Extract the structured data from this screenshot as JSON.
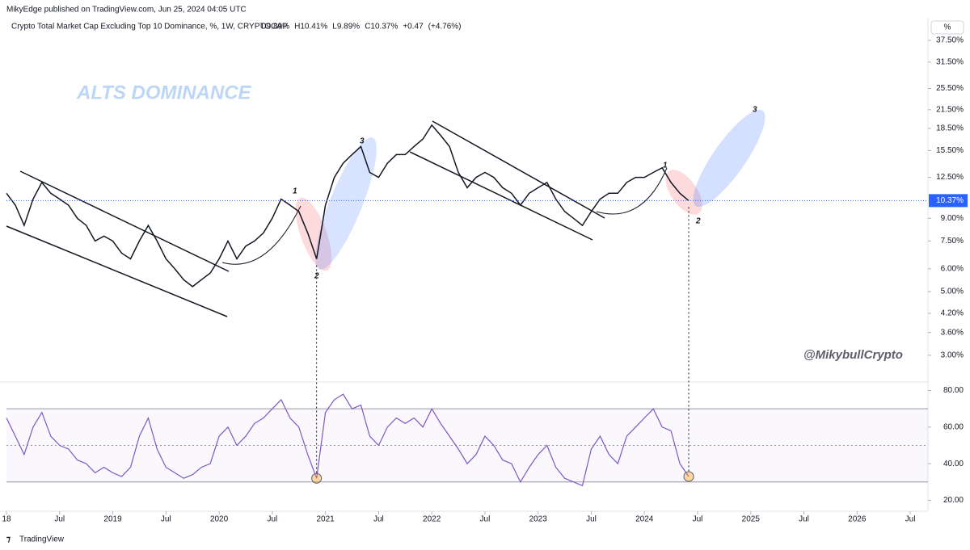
{
  "header": {
    "publisher": "MikyEdge published on TradingView.com, Jun 25, 2024 04:05 UTC",
    "footer": "TradingView"
  },
  "chart_data": [
    {
      "type": "line",
      "title": "Crypto Total Market Cap Excluding Top 10 Dominance, %, 1W, CRYPTOCAP",
      "legend_values": [
        {
          "value": 9.89,
          "label": "O9.89%"
        },
        {
          "value": 10.41,
          "label": "H10.41%"
        },
        {
          "value": 9.89,
          "label": "L9.89%"
        },
        {
          "value": 10.37,
          "label": "C10.37%"
        },
        {
          "value": 0.47,
          "label": "+0.47"
        },
        {
          "value": 4.76,
          "label": "(+4.76%)"
        }
      ],
      "last_price": {
        "value": 10.37,
        "label": "10.37%"
      },
      "unit": "%",
      "log_scale": true,
      "color": "#131722",
      "x": [
        "2018-01",
        "2018-02",
        "2018-03",
        "2018-04",
        "2018-05",
        "2018-06",
        "2018-07",
        "2018-08",
        "2018-09",
        "2018-10",
        "2018-11",
        "2018-12",
        "2019-01",
        "2019-02",
        "2019-03",
        "2019-04",
        "2019-05",
        "2019-06",
        "2019-07",
        "2019-08",
        "2019-09",
        "2019-10",
        "2019-11",
        "2019-12",
        "2020-01",
        "2020-02",
        "2020-03",
        "2020-04",
        "2020-05",
        "2020-06",
        "2020-07",
        "2020-08",
        "2020-09",
        "2020-10",
        "2020-11",
        "2020-12",
        "2021-01",
        "2021-02",
        "2021-03",
        "2021-04",
        "2021-05",
        "2021-06",
        "2021-07",
        "2021-08",
        "2021-09",
        "2021-10",
        "2021-11",
        "2021-12",
        "2022-01",
        "2022-02",
        "2022-03",
        "2022-04",
        "2022-05",
        "2022-06",
        "2022-07",
        "2022-08",
        "2022-09",
        "2022-10",
        "2022-11",
        "2022-12",
        "2023-01",
        "2023-02",
        "2023-03",
        "2023-04",
        "2023-05",
        "2023-06",
        "2023-07",
        "2023-08",
        "2023-09",
        "2023-10",
        "2023-11",
        "2023-12",
        "2024-01",
        "2024-02",
        "2024-03",
        "2024-04",
        "2024-05",
        "2024-06"
      ],
      "values": [
        11,
        10,
        8.5,
        10.5,
        12,
        11,
        10.5,
        10,
        9,
        8.5,
        7.5,
        7.8,
        7.5,
        6.8,
        6.5,
        7.5,
        8.5,
        7.5,
        6.5,
        6,
        5.5,
        5.2,
        5.5,
        5.8,
        6.5,
        7.5,
        6.5,
        7.2,
        7.5,
        8,
        9,
        10.5,
        10,
        9.5,
        8,
        6.5,
        10,
        12.5,
        14,
        15,
        16,
        13,
        12.5,
        14,
        15,
        15,
        16,
        17,
        19,
        17.5,
        16,
        13,
        11.5,
        12.5,
        13,
        12.5,
        11.5,
        11,
        10,
        11,
        11.5,
        12,
        10.5,
        9.5,
        9,
        8.5,
        9.5,
        10.5,
        11,
        11,
        12,
        12.5,
        12.5,
        13,
        13.5,
        12,
        11,
        10.37
      ],
      "xlim": [
        "2018-01",
        "2026-09"
      ],
      "ylim": [
        2.5,
        40
      ],
      "yticks": [
        {
          "value": 37.5,
          "label": "37.50%"
        },
        {
          "value": 31.5,
          "label": "31.50%"
        },
        {
          "value": 25.5,
          "label": "25.50%"
        },
        {
          "value": 21.5,
          "label": "21.50%"
        },
        {
          "value": 18.5,
          "label": "18.50%"
        },
        {
          "value": 15.5,
          "label": "15.50%"
        },
        {
          "value": 12.5,
          "label": "12.50%"
        },
        {
          "value": 9,
          "label": "9.00%"
        },
        {
          "value": 7.5,
          "label": "7.50%"
        },
        {
          "value": 6,
          "label": "6.00%"
        },
        {
          "value": 5,
          "label": "5.00%"
        },
        {
          "value": 4.2,
          "label": "4.20%"
        },
        {
          "value": 3.6,
          "label": "3.60%"
        },
        {
          "value": 3,
          "label": "3.00%"
        }
      ],
      "annotations": [
        "ALTS DOMINANCE",
        "@MikybullCrypto",
        "1",
        "2",
        "3",
        "1",
        "2",
        "3"
      ]
    },
    {
      "type": "line",
      "color": "#7e57c2",
      "x": [
        "2018-01",
        "2018-02",
        "2018-03",
        "2018-04",
        "2018-05",
        "2018-06",
        "2018-07",
        "2018-08",
        "2018-09",
        "2018-10",
        "2018-11",
        "2018-12",
        "2019-01",
        "2019-02",
        "2019-03",
        "2019-04",
        "2019-05",
        "2019-06",
        "2019-07",
        "2019-08",
        "2019-09",
        "2019-10",
        "2019-11",
        "2019-12",
        "2020-01",
        "2020-02",
        "2020-03",
        "2020-04",
        "2020-05",
        "2020-06",
        "2020-07",
        "2020-08",
        "2020-09",
        "2020-10",
        "2020-11",
        "2020-12",
        "2021-01",
        "2021-02",
        "2021-03",
        "2021-04",
        "2021-05",
        "2021-06",
        "2021-07",
        "2021-08",
        "2021-09",
        "2021-10",
        "2021-11",
        "2021-12",
        "2022-01",
        "2022-02",
        "2022-03",
        "2022-04",
        "2022-05",
        "2022-06",
        "2022-07",
        "2022-08",
        "2022-09",
        "2022-10",
        "2022-11",
        "2022-12",
        "2023-01",
        "2023-02",
        "2023-03",
        "2023-04",
        "2023-05",
        "2023-06",
        "2023-07",
        "2023-08",
        "2023-09",
        "2023-10",
        "2023-11",
        "2023-12",
        "2024-01",
        "2024-02",
        "2024-03",
        "2024-04",
        "2024-05",
        "2024-06"
      ],
      "values": [
        65,
        55,
        45,
        60,
        68,
        55,
        50,
        48,
        42,
        40,
        35,
        38,
        35,
        33,
        38,
        55,
        65,
        48,
        38,
        35,
        32,
        34,
        38,
        40,
        55,
        60,
        50,
        55,
        62,
        65,
        70,
        75,
        65,
        60,
        45,
        32,
        68,
        75,
        78,
        70,
        72,
        55,
        50,
        60,
        65,
        62,
        65,
        60,
        70,
        62,
        55,
        48,
        40,
        45,
        55,
        50,
        42,
        40,
        30,
        38,
        45,
        50,
        38,
        32,
        30,
        28,
        48,
        55,
        45,
        40,
        55,
        60,
        65,
        70,
        60,
        58,
        40,
        33
      ],
      "levels": [
        70,
        50,
        30
      ],
      "xlim": [
        "2018-01",
        "2026-09"
      ],
      "ylim": [
        14,
        82
      ],
      "yticks": [
        {
          "value": 80,
          "label": "80.00"
        },
        {
          "value": 60,
          "label": "60.00"
        },
        {
          "value": 40,
          "label": "40.00"
        },
        {
          "value": 20,
          "label": "20.00"
        }
      ],
      "xticks": [
        {
          "value": "2018-01",
          "label": "18"
        },
        {
          "value": "2018-07",
          "label": "Jul"
        },
        {
          "value": "2019-01",
          "label": "2019"
        },
        {
          "value": "2019-07",
          "label": "Jul"
        },
        {
          "value": "2020-01",
          "label": "2020"
        },
        {
          "value": "2020-07",
          "label": "Jul"
        },
        {
          "value": "2021-01",
          "label": "2021"
        },
        {
          "value": "2021-07",
          "label": "Jul"
        },
        {
          "value": "2022-01",
          "label": "2022"
        },
        {
          "value": "2022-07",
          "label": "Jul"
        },
        {
          "value": "2023-01",
          "label": "2023"
        },
        {
          "value": "2023-07",
          "label": "Jul"
        },
        {
          "value": "2024-01",
          "label": "2024"
        },
        {
          "value": "2024-07",
          "label": "Jul"
        },
        {
          "value": "2025-01",
          "label": "2025"
        },
        {
          "value": "2025-07",
          "label": "Jul"
        },
        {
          "value": "2026-01",
          "label": "2026"
        },
        {
          "value": "2026-07",
          "label": "Jul"
        }
      ]
    }
  ]
}
